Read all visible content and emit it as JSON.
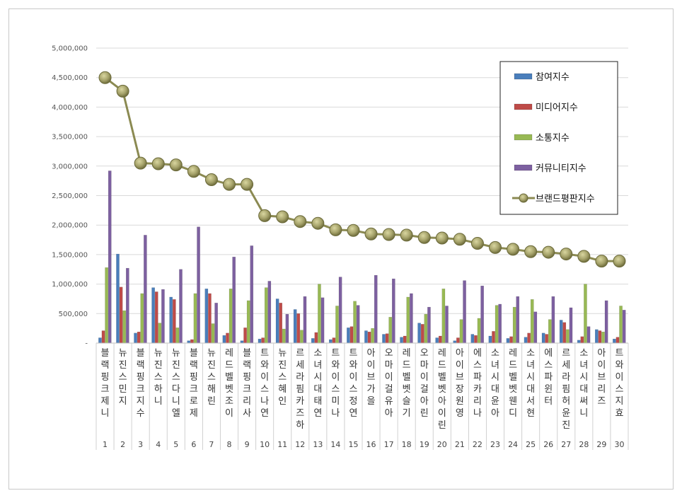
{
  "chart_data": {
    "type": "bar",
    "title": "",
    "xlabel": "",
    "ylabel": "",
    "ylim": [
      0,
      5000000
    ],
    "yticks": [
      "-",
      "500,000",
      "1,000,000",
      "1,500,000",
      "2,000,000",
      "2,500,000",
      "3,000,000",
      "3,500,000",
      "4,000,000",
      "4,500,000",
      "5,000,000"
    ],
    "grid": true,
    "legend_position": "top-right",
    "ranks": [
      "1",
      "2",
      "3",
      "4",
      "5",
      "6",
      "7",
      "8",
      "9",
      "10",
      "11",
      "12",
      "13",
      "14",
      "15",
      "16",
      "17",
      "18",
      "19",
      "20",
      "21",
      "22",
      "23",
      "24",
      "25",
      "26",
      "27",
      "28",
      "29",
      "30"
    ],
    "categories": [
      "블랙핑크 제니",
      "뉴진스 민지",
      "블랙핑크 지수",
      "뉴진스 하니",
      "뉴진스 다니엘",
      "블랙핑크 로제",
      "뉴진스 해린",
      "레드벨벳 조이",
      "블랙핑크 리사",
      "트와이스 나연",
      "뉴진스 혜인",
      "르세라핌 카즈하",
      "소녀시대 태연",
      "트와이스 미나",
      "트와이스 정연",
      "아이브 가을",
      "오마이걸 유아",
      "레드벨벳 슬기",
      "오마이걸 아린",
      "레드벨벳 아이린",
      "아이브 장원영",
      "에스파 카리나",
      "소녀시대 윤아",
      "레드벨벳 웬디",
      "소녀시대 서현",
      "에스파 윈터",
      "르세라핌 허윤진",
      "소녀시대 써니",
      "아이브 리즈",
      "트와이스 지효"
    ],
    "series": [
      {
        "name": "참여지수",
        "kind": "bar",
        "color": "#4a7ebb",
        "values": [
          90000,
          1510000,
          170000,
          940000,
          780000,
          40000,
          920000,
          130000,
          40000,
          70000,
          750000,
          570000,
          80000,
          60000,
          260000,
          210000,
          150000,
          100000,
          340000,
          90000,
          40000,
          150000,
          120000,
          80000,
          100000,
          170000,
          390000,
          50000,
          230000,
          70000
        ]
      },
      {
        "name": "미디어지수",
        "kind": "bar",
        "color": "#be4b48",
        "values": [
          210000,
          950000,
          190000,
          870000,
          740000,
          60000,
          840000,
          170000,
          260000,
          90000,
          680000,
          500000,
          180000,
          90000,
          280000,
          190000,
          160000,
          120000,
          320000,
          120000,
          90000,
          130000,
          200000,
          110000,
          170000,
          150000,
          350000,
          110000,
          210000,
          100000
        ]
      },
      {
        "name": "소통지수",
        "kind": "bar",
        "color": "#98b954",
        "values": [
          1280000,
          550000,
          840000,
          340000,
          260000,
          840000,
          330000,
          920000,
          720000,
          940000,
          240000,
          220000,
          1000000,
          630000,
          710000,
          250000,
          440000,
          780000,
          490000,
          920000,
          400000,
          420000,
          640000,
          610000,
          740000,
          400000,
          230000,
          1000000,
          190000,
          630000
        ]
      },
      {
        "name": "커뮤니티지수",
        "kind": "bar",
        "color": "#7d60a0",
        "values": [
          2920000,
          1270000,
          1830000,
          910000,
          1250000,
          1970000,
          680000,
          1460000,
          1650000,
          1050000,
          490000,
          790000,
          770000,
          1120000,
          640000,
          1150000,
          1090000,
          840000,
          610000,
          630000,
          1060000,
          970000,
          660000,
          790000,
          530000,
          790000,
          600000,
          280000,
          720000,
          560000
        ]
      },
      {
        "name": "브랜드평판지수",
        "kind": "line",
        "color": "#8b8a52",
        "values": [
          4500000,
          4270000,
          3050000,
          3040000,
          3020000,
          2910000,
          2770000,
          2690000,
          2690000,
          2160000,
          2140000,
          2060000,
          2030000,
          1920000,
          1910000,
          1850000,
          1840000,
          1830000,
          1790000,
          1780000,
          1760000,
          1690000,
          1620000,
          1590000,
          1550000,
          1540000,
          1510000,
          1470000,
          1390000,
          1390000
        ]
      }
    ]
  }
}
